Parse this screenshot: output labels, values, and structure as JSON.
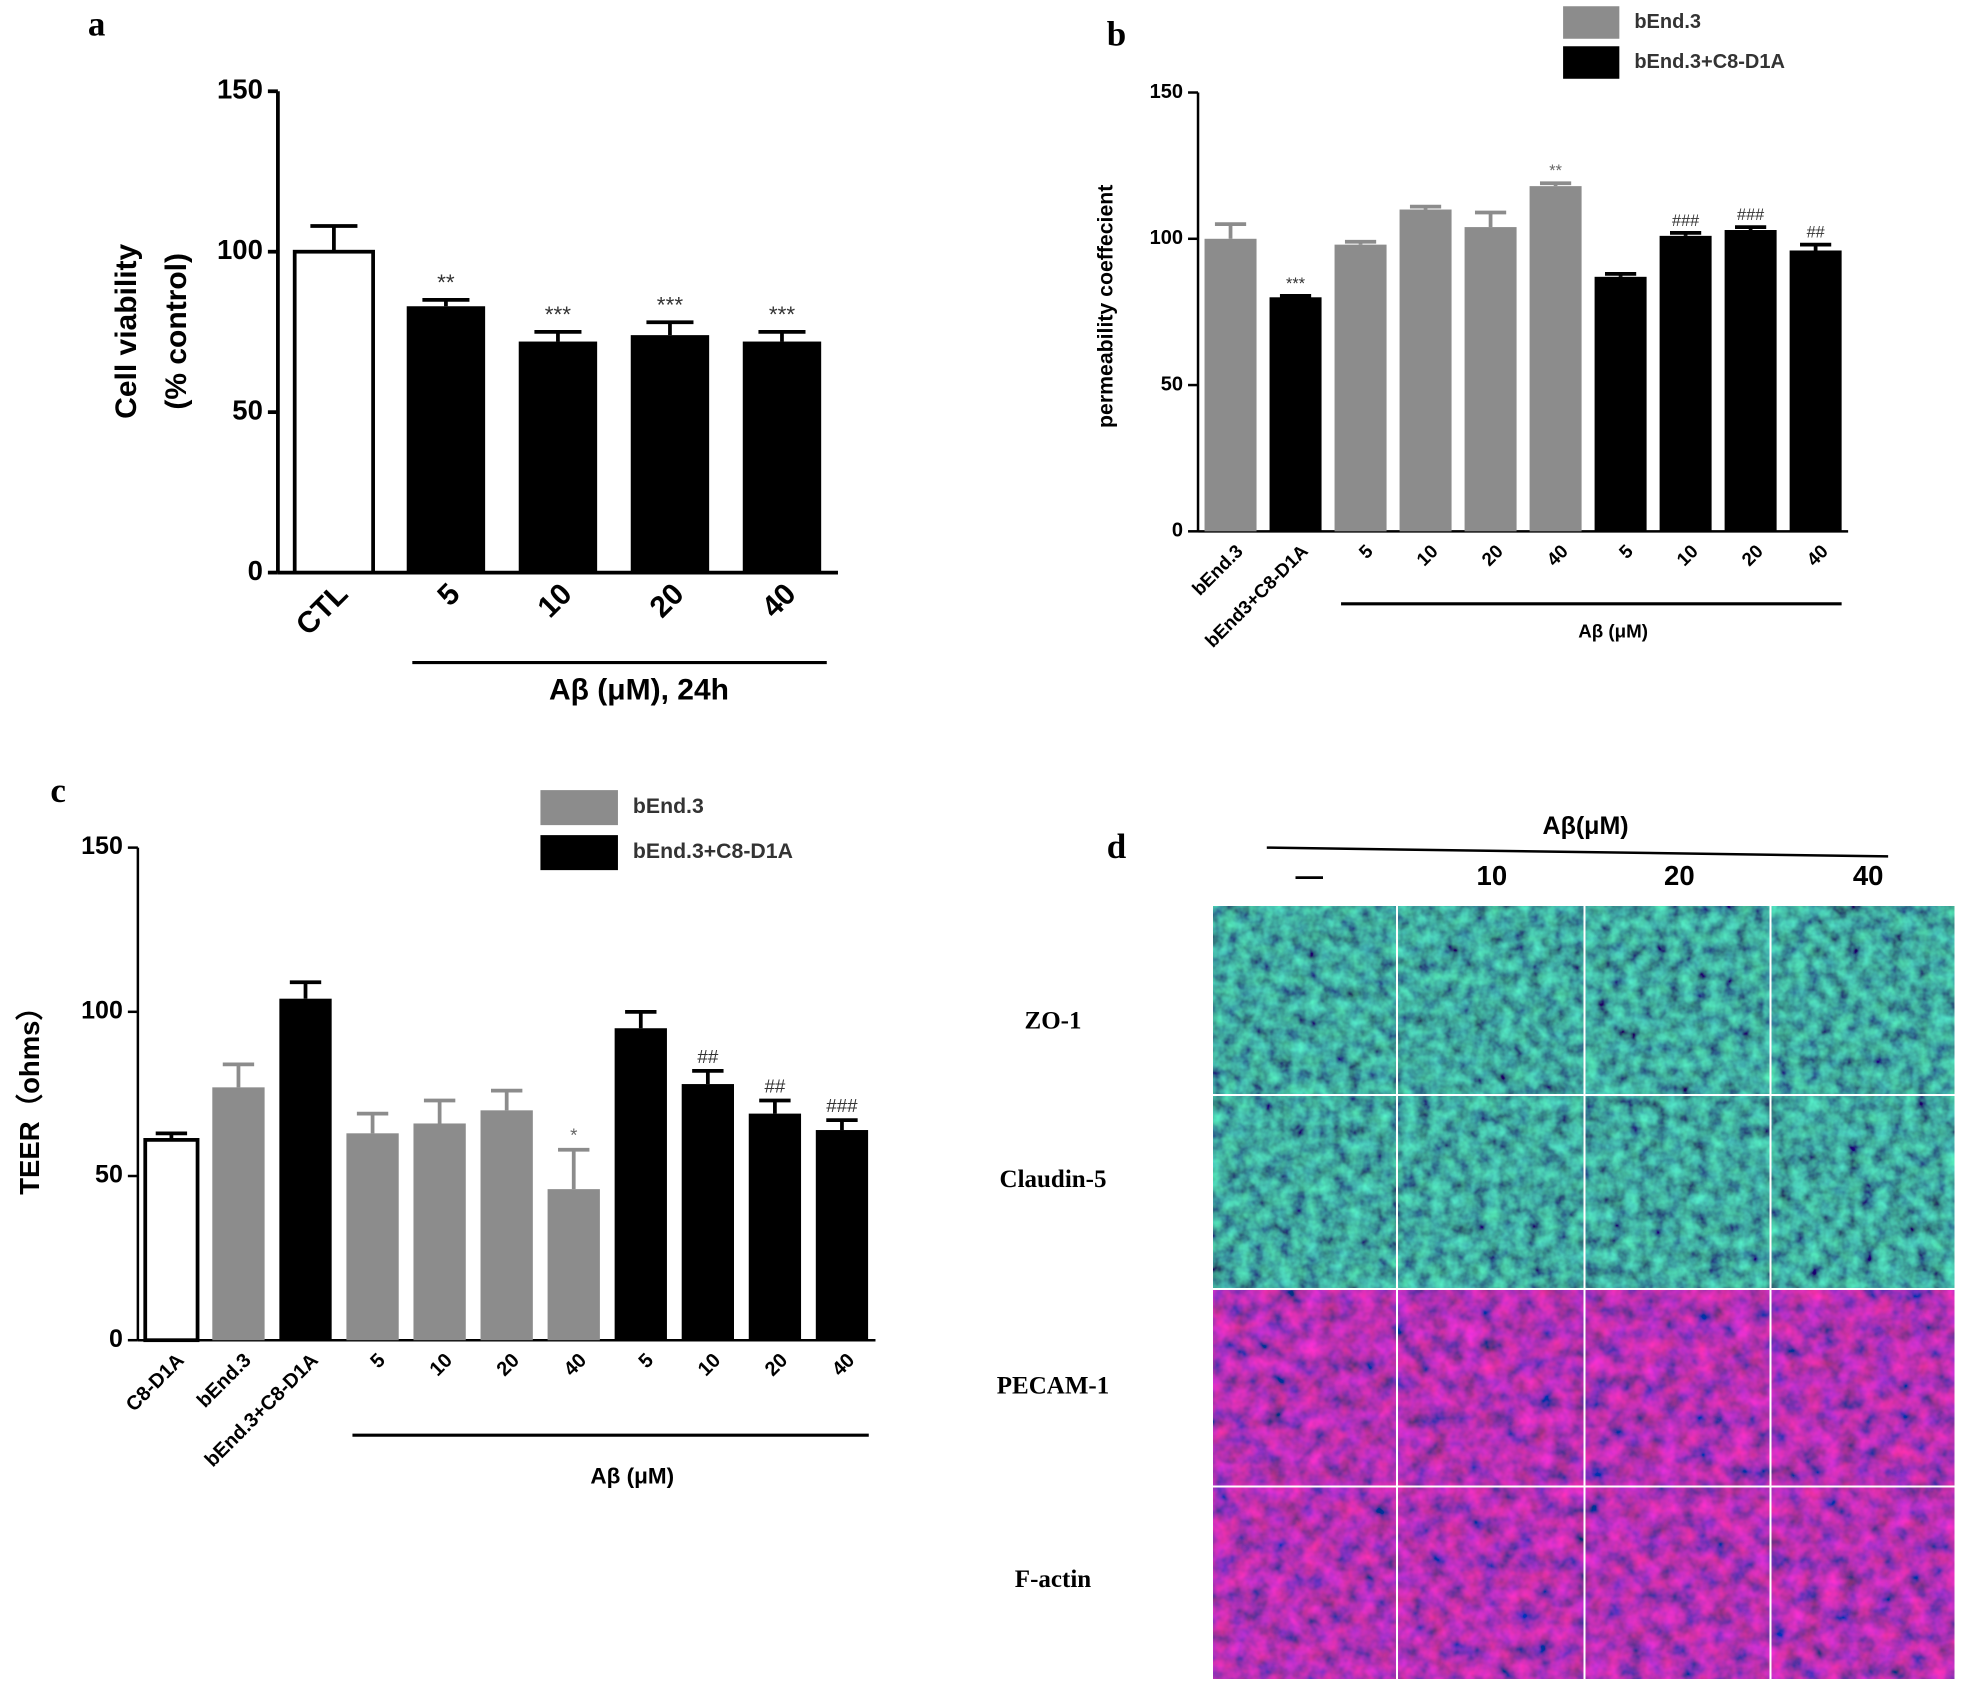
{
  "chart_data": [
    {
      "type": "bar",
      "panel_label": "a",
      "ylabel": [
        "Cell viability",
        "(% control)"
      ],
      "categories": [
        "CTL",
        "5",
        "10",
        "20",
        "40"
      ],
      "group_label": "Aβ (μM), 24h",
      "ylim": [
        0,
        150
      ],
      "yticks": [
        0,
        50,
        100,
        150
      ],
      "series": [
        {
          "color": "#ffffff",
          "values": [
            100,
            null,
            null,
            null,
            null
          ],
          "errors": [
            8,
            null,
            null,
            null,
            null
          ]
        },
        {
          "color": "#000000",
          "values": [
            null,
            83,
            72,
            74,
            72
          ],
          "errors": [
            null,
            2,
            3,
            4,
            3
          ],
          "annotations": [
            null,
            "**",
            "***",
            "***",
            "***"
          ]
        }
      ]
    },
    {
      "type": "bar",
      "panel_label": "b",
      "ylabel": "permeability coeffecient",
      "categories": [
        "bEnd.3",
        "bEnd3+C8-D1A",
        "5",
        "10",
        "20",
        "40",
        "5",
        "10",
        "20",
        "40"
      ],
      "group_label": "Aβ (μM)",
      "ylim": [
        0,
        150
      ],
      "yticks": [
        0,
        50,
        100,
        150
      ],
      "series": [
        {
          "name": "bEnd.3",
          "color": "#8c8c8c",
          "values": [
            100,
            null,
            98,
            110,
            104,
            118,
            null,
            null,
            null,
            null
          ],
          "errors": [
            5,
            null,
            1,
            1,
            5,
            1,
            null,
            null,
            null,
            null
          ],
          "annotations": [
            null,
            null,
            null,
            null,
            null,
            "**",
            null,
            null,
            null,
            null
          ]
        },
        {
          "name": "bEnd.3+C8-D1A",
          "color": "#000000",
          "values": [
            null,
            80,
            null,
            null,
            null,
            null,
            87,
            101,
            103,
            96
          ],
          "errors": [
            null,
            0.5,
            null,
            null,
            null,
            null,
            1,
            1,
            1,
            2
          ],
          "annotations": [
            null,
            "***",
            null,
            null,
            null,
            null,
            null,
            "###",
            "###",
            "##"
          ]
        }
      ]
    },
    {
      "type": "bar",
      "panel_label": "c",
      "ylabel": "TEER（ohms）",
      "categories": [
        "C8-D1A",
        "bEnd.3",
        "bEnd.3+C8-D1A",
        "5",
        "10",
        "20",
        "40",
        "5",
        "10",
        "20",
        "40"
      ],
      "group_label": "Aβ (μM)",
      "ylim": [
        0,
        150
      ],
      "yticks": [
        0,
        50,
        100,
        150
      ],
      "series": [
        {
          "color": "#ffffff",
          "values": [
            61,
            null,
            null,
            null,
            null,
            null,
            null,
            null,
            null,
            null,
            null
          ],
          "errors": [
            2,
            null,
            null,
            null,
            null,
            null,
            null,
            null,
            null,
            null,
            null
          ]
        },
        {
          "name": "bEnd.3",
          "color": "#8c8c8c",
          "values": [
            null,
            77,
            null,
            63,
            66,
            70,
            46,
            null,
            null,
            null,
            null
          ],
          "errors": [
            null,
            7,
            null,
            6,
            7,
            6,
            12,
            null,
            null,
            null,
            null
          ],
          "annotations": [
            null,
            null,
            null,
            null,
            null,
            null,
            "*",
            null,
            null,
            null,
            null
          ]
        },
        {
          "name": "bEnd.3+C8-D1A",
          "color": "#000000",
          "values": [
            null,
            null,
            104,
            null,
            null,
            null,
            null,
            95,
            78,
            69,
            64
          ],
          "errors": [
            null,
            null,
            5,
            null,
            null,
            null,
            null,
            5,
            4,
            4,
            3
          ],
          "annotations": [
            null,
            null,
            null,
            null,
            null,
            null,
            null,
            null,
            "##",
            "##",
            "###"
          ]
        }
      ]
    }
  ],
  "panel_d": {
    "label": "d",
    "header": "Aβ(μM)",
    "columns": [
      "—",
      "10",
      "20",
      "40"
    ],
    "rows": [
      "ZO-1",
      "Claudin-5",
      "PECAM-1",
      "F-actin"
    ]
  }
}
